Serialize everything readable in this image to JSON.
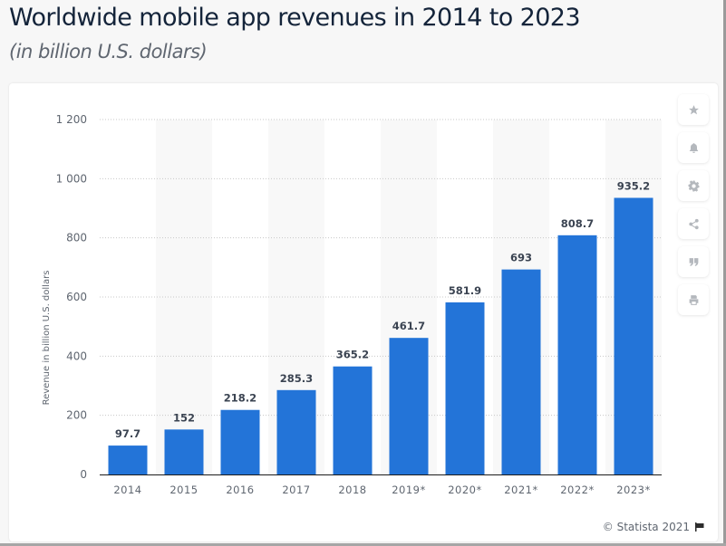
{
  "header": {
    "title": "Worldwide mobile app revenues in 2014 to 2023",
    "subtitle": "(in billion U.S. dollars)"
  },
  "tools": [
    {
      "name": "favorite",
      "icon": "star-icon"
    },
    {
      "name": "notify",
      "icon": "bell-icon"
    },
    {
      "name": "settings",
      "icon": "gear-icon"
    },
    {
      "name": "share",
      "icon": "share-icon"
    },
    {
      "name": "cite",
      "icon": "quote-icon"
    },
    {
      "name": "print",
      "icon": "printer-icon"
    }
  ],
  "footer": {
    "copyright": "© Statista 2021",
    "flag_icon": "flag-icon"
  },
  "colors": {
    "bar": "#2374d8",
    "label": "#3b4452",
    "axis_text": "#5f6670",
    "band": "#f8f8f8",
    "grid": "#c8c8c8",
    "baseline": "#1c1c1c"
  },
  "chart_data": {
    "type": "bar",
    "title": "Worldwide mobile app revenues in 2014 to 2023",
    "subtitle": "(in billion U.S. dollars)",
    "xlabel": "",
    "ylabel": "Revenue in billion U.S. dollars",
    "categories": [
      "2014",
      "2015",
      "2016",
      "2017",
      "2018",
      "2019*",
      "2020*",
      "2021*",
      "2022*",
      "2023*"
    ],
    "values": [
      97.7,
      152,
      218.2,
      285.3,
      365.2,
      461.7,
      581.9,
      693,
      808.7,
      935.2
    ],
    "data_labels": [
      "97.7",
      "152",
      "218.2",
      "285.3",
      "365.2",
      "461.7",
      "581.9",
      "693",
      "808.7",
      "935.2"
    ],
    "ylim": [
      0,
      1200
    ],
    "yticks": [
      0,
      200,
      400,
      600,
      800,
      1000,
      1200
    ],
    "ytick_labels": [
      "0",
      "200",
      "400",
      "600",
      "800",
      "1 000",
      "1 200"
    ],
    "grid": true,
    "legend": "none"
  }
}
